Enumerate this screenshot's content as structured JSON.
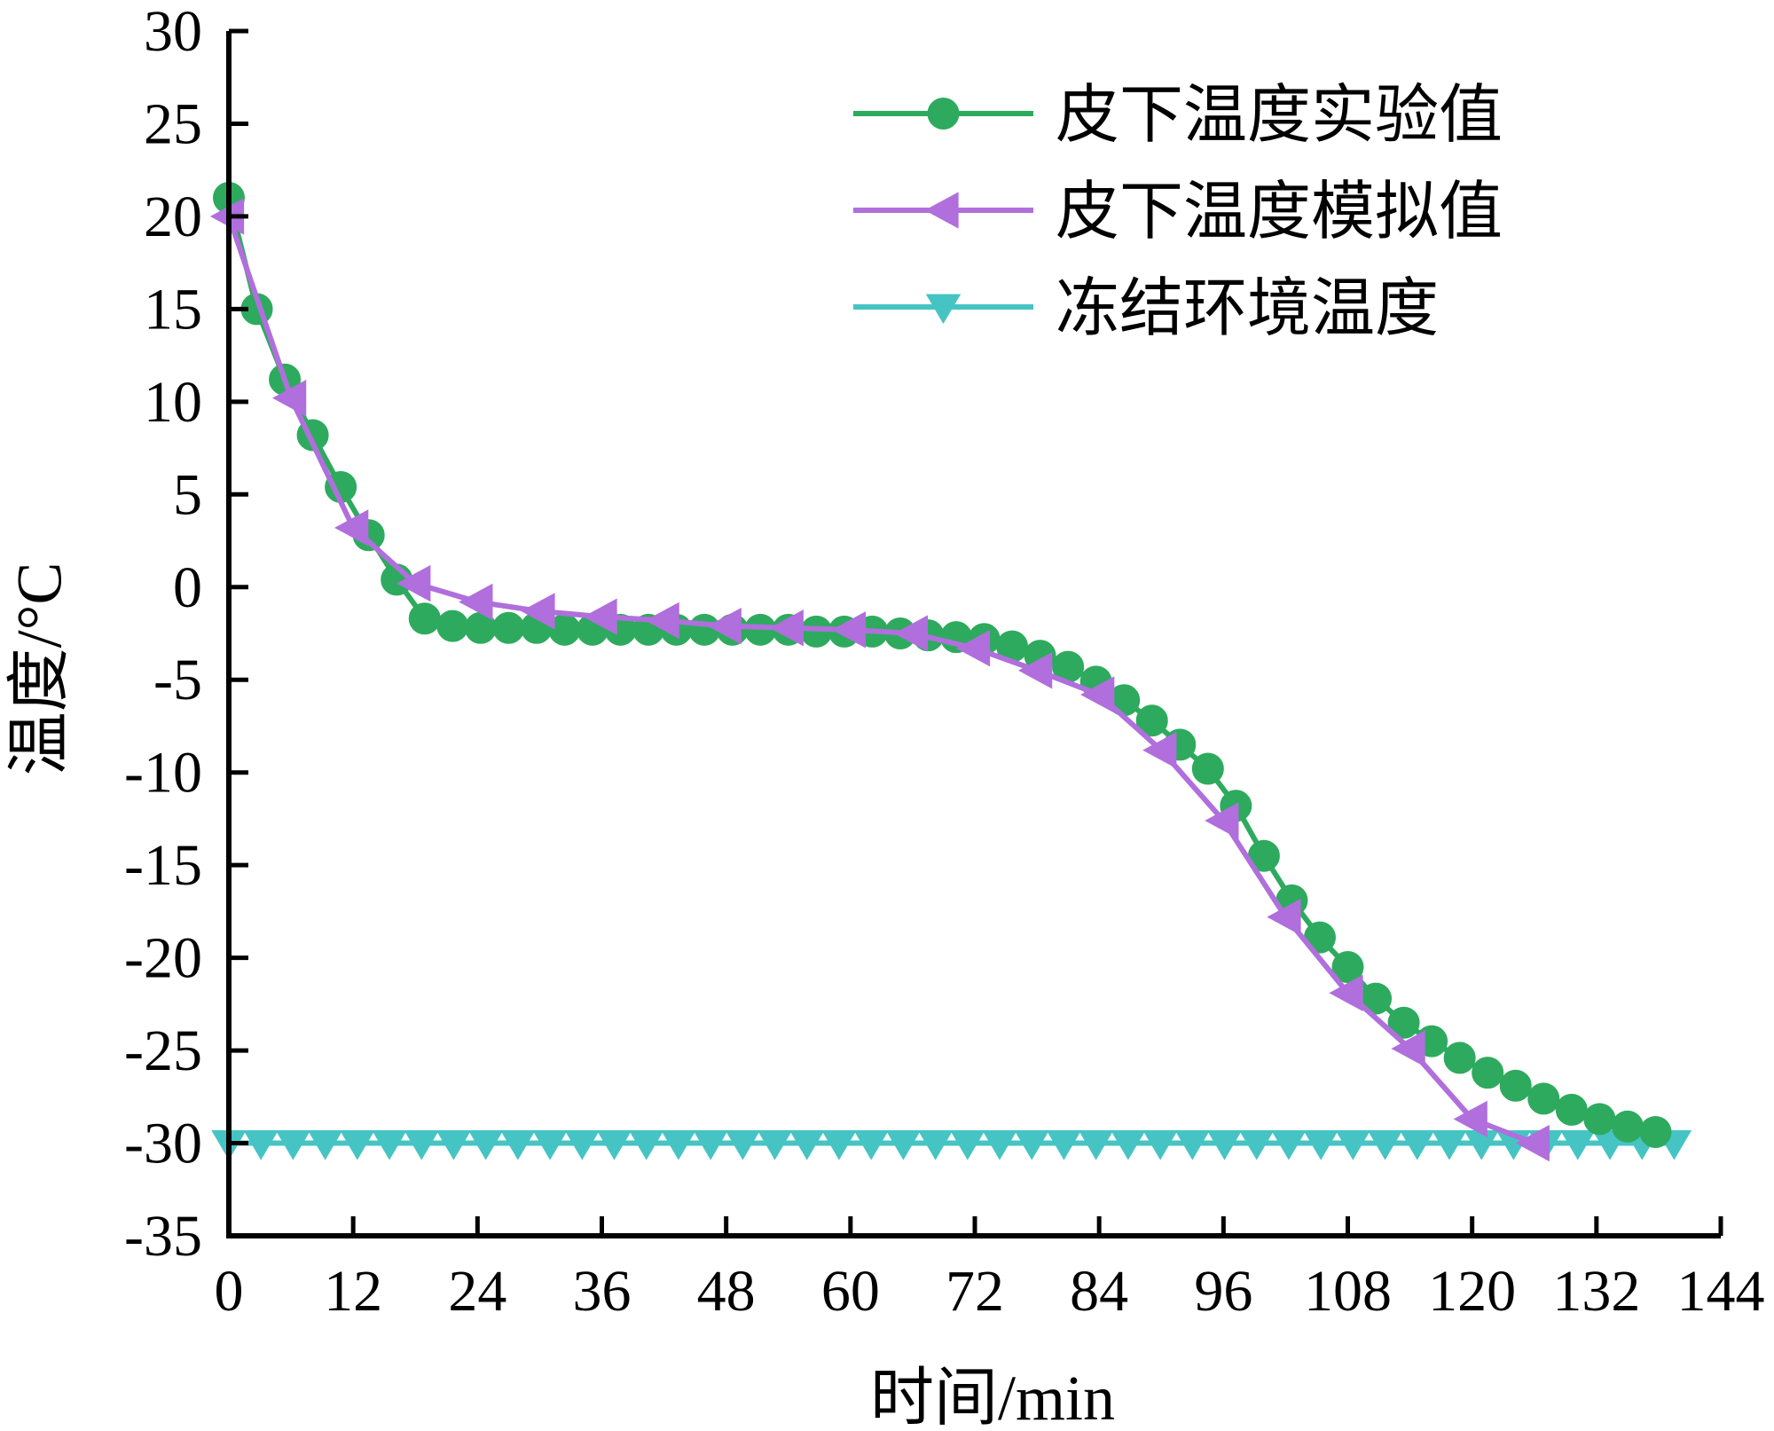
{
  "chart_data": {
    "type": "line",
    "xlabel": "时间/min",
    "ylabel": "温度/°C",
    "xlim": [
      0,
      144
    ],
    "ylim": [
      -35,
      30
    ],
    "xticks": [
      0,
      12,
      24,
      36,
      48,
      60,
      72,
      84,
      96,
      108,
      120,
      132,
      144
    ],
    "yticks": [
      30,
      25,
      20,
      15,
      10,
      5,
      0,
      -5,
      -10,
      -15,
      -20,
      -25,
      -30,
      -35
    ],
    "grid": false,
    "legend_position": "top-right",
    "series": [
      {
        "name": "皮下温度实验值",
        "color": "#2eaa5e",
        "marker": "circle",
        "x": [
          0,
          2.7,
          5.4,
          8.1,
          10.8,
          13.5,
          16.2,
          18.9,
          21.6,
          24.3,
          27,
          29.7,
          32.4,
          35.1,
          37.8,
          40.5,
          43.2,
          45.9,
          48.6,
          51.3,
          54,
          56.7,
          59.4,
          62.1,
          64.8,
          67.5,
          70.2,
          72.9,
          75.6,
          78.3,
          81,
          83.7,
          86.4,
          89.1,
          91.8,
          94.5,
          97.2,
          99.9,
          102.6,
          105.3,
          108,
          110.7,
          113.4,
          116.1,
          118.8,
          121.5,
          124.2,
          126.9,
          129.6,
          132.3,
          135,
          137.7
        ],
        "y": [
          21,
          15,
          11.2,
          8.2,
          5.4,
          2.8,
          0.4,
          -1.7,
          -2.1,
          -2.2,
          -2.2,
          -2.2,
          -2.3,
          -2.3,
          -2.3,
          -2.3,
          -2.3,
          -2.3,
          -2.3,
          -2.3,
          -2.3,
          -2.4,
          -2.4,
          -2.4,
          -2.5,
          -2.6,
          -2.7,
          -2.8,
          -3.2,
          -3.7,
          -4.3,
          -5.1,
          -6.1,
          -7.2,
          -8.5,
          -9.8,
          -11.8,
          -14.5,
          -16.9,
          -18.9,
          -20.5,
          -22.2,
          -23.5,
          -24.5,
          -25.4,
          -26.2,
          -26.9,
          -27.6,
          -28.2,
          -28.7,
          -29.1,
          -29.4
        ]
      },
      {
        "name": "皮下温度模拟值",
        "color": "#b06fdc",
        "marker": "triangle-left",
        "x": [
          0,
          6,
          12,
          18,
          24,
          30,
          36,
          42,
          48,
          54,
          60,
          66,
          72,
          78,
          84,
          90,
          96,
          102,
          108,
          114,
          120,
          126
        ],
        "y": [
          20,
          10.2,
          3.2,
          0.2,
          -0.8,
          -1.3,
          -1.6,
          -1.8,
          -2.1,
          -2.2,
          -2.3,
          -2.5,
          -3.3,
          -4.5,
          -5.8,
          -8.8,
          -12.6,
          -17.8,
          -21.9,
          -24.9,
          -28.7,
          -30
        ]
      },
      {
        "name": "冻结环境温度",
        "color": "#46c4c4",
        "marker": "triangle-down",
        "x": [
          0,
          3.1,
          6.2,
          9.3,
          12.4,
          15.5,
          18.6,
          21.7,
          24.8,
          27.9,
          31,
          34.1,
          37.2,
          40.3,
          43.4,
          46.5,
          49.6,
          52.7,
          55.8,
          58.9,
          62,
          65.1,
          68.2,
          71.3,
          74.4,
          77.5,
          80.6,
          83.7,
          86.8,
          89.9,
          93,
          96.1,
          99.2,
          102.3,
          105.4,
          108.5,
          111.6,
          114.7,
          117.8,
          120.9,
          124,
          127.1,
          130.2,
          133.3,
          136.4,
          139.5
        ],
        "y": [
          -30,
          -30,
          -30,
          -30,
          -30,
          -30,
          -30,
          -30,
          -30,
          -30,
          -30,
          -30,
          -30,
          -30,
          -30,
          -30,
          -30,
          -30,
          -30,
          -30,
          -30,
          -30,
          -30,
          -30,
          -30,
          -30,
          -30,
          -30,
          -30,
          -30,
          -30,
          -30,
          -30,
          -30,
          -30,
          -30,
          -30,
          -30,
          -30,
          -30,
          -30,
          -30,
          -30,
          -30,
          -30,
          -30
        ]
      }
    ]
  }
}
